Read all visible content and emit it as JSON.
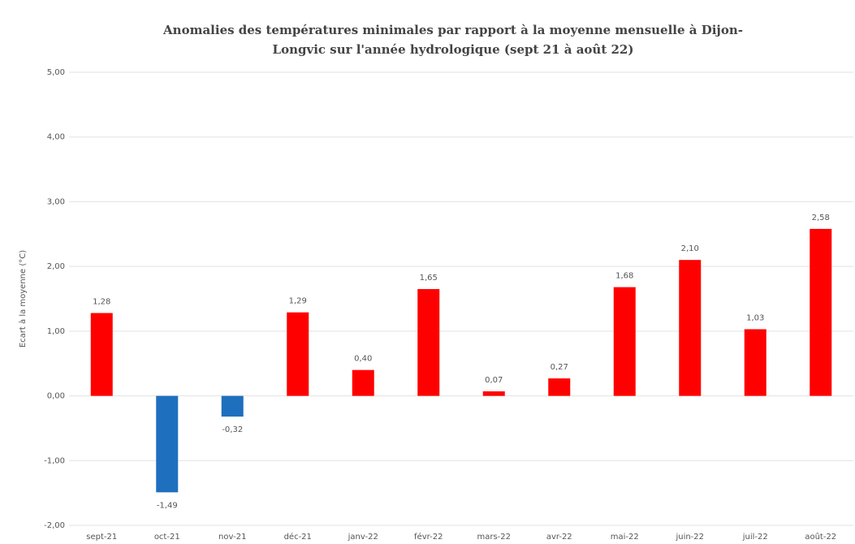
{
  "chart_data": {
    "type": "bar",
    "title": [
      "Anomalies des températures minimales par rapport à la moyenne mensuelle à Dijon-",
      "Longvic sur  l'année hydrologique (sept 21 à août 22)"
    ],
    "y_label": "Ecart à la moyenne (°C)",
    "categories": [
      "sept-21",
      "oct-21",
      "nov-21",
      "déc-21",
      "janv-22",
      "févr-22",
      "mars-22",
      "avr-22",
      "mai-22",
      "juin-22",
      "juil-22",
      "août-22"
    ],
    "values": [
      1.28,
      -1.49,
      -0.32,
      1.29,
      0.4,
      1.65,
      0.07,
      0.27,
      1.68,
      2.1,
      1.03,
      2.58
    ],
    "value_labels": [
      "1,28",
      "-1,49",
      "-0,32",
      "1,29",
      "0,40",
      "1,65",
      "0,07",
      "0,27",
      "1,68",
      "2,10",
      "1,03",
      "2,58"
    ],
    "colors": [
      "#ff0000",
      "#1f6fbf",
      "#1f6fbf",
      "#ff0000",
      "#ff0000",
      "#ff0000",
      "#ff0000",
      "#ff0000",
      "#ff0000",
      "#ff0000",
      "#ff0000",
      "#ff0000"
    ],
    "ylim": [
      -2,
      5
    ],
    "yticks": [
      {
        "value": -2,
        "label": "-2,00"
      },
      {
        "value": -1,
        "label": "-1,00"
      },
      {
        "value": 0,
        "label": "0,00"
      },
      {
        "value": 1,
        "label": "1,00"
      },
      {
        "value": 2,
        "label": "2,00"
      },
      {
        "value": 3,
        "label": "3,00"
      },
      {
        "value": 4,
        "label": "4,00"
      },
      {
        "value": 5,
        "label": "5,00"
      }
    ],
    "grid": true
  }
}
